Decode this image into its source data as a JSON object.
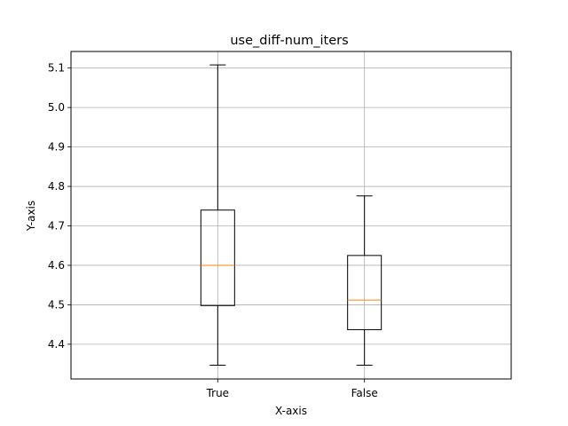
{
  "chart_data": {
    "type": "box",
    "title": "use_diff-num_iters",
    "xlabel": "X-axis",
    "ylabel": "Y-axis",
    "categories": [
      "True",
      "False"
    ],
    "boxes": [
      {
        "category": "True",
        "whisker_low": 4.347,
        "q1": 4.498,
        "median": 4.6,
        "q3": 4.74,
        "whisker_high": 5.108
      },
      {
        "category": "False",
        "whisker_low": 4.347,
        "q1": 4.437,
        "median": 4.512,
        "q3": 4.625,
        "whisker_high": 4.776
      }
    ],
    "ylim": [
      4.312,
      5.142
    ],
    "yticks": [
      4.4,
      4.5,
      4.6,
      4.7,
      4.8,
      4.9,
      5.0,
      5.1
    ],
    "ytick_labels": [
      "4.4",
      "4.5",
      "4.6",
      "4.7",
      "4.8",
      "4.9",
      "5.0",
      "5.1"
    ],
    "grid": true,
    "colors": {
      "box": "#000000",
      "median": "#ff7f0e",
      "grid": "#b0b0b0"
    }
  }
}
